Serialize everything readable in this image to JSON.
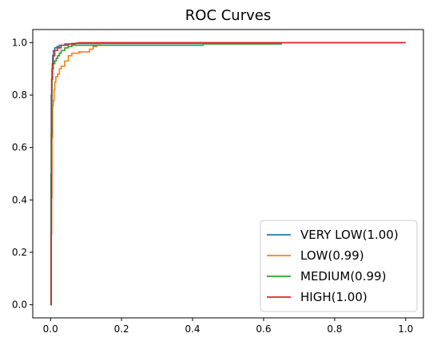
{
  "chart_data": {
    "type": "line",
    "title": "ROC Curves",
    "xlabel": "",
    "ylabel": "",
    "xlim": [
      -0.05,
      1.05
    ],
    "ylim": [
      -0.05,
      1.05
    ],
    "xticks": [
      0.0,
      0.2,
      0.4,
      0.6,
      0.8,
      1.0
    ],
    "yticks": [
      0.0,
      0.2,
      0.4,
      0.6,
      0.8,
      1.0
    ],
    "xtick_labels": [
      "0.0",
      "0.2",
      "0.4",
      "0.6",
      "0.8",
      "1.0"
    ],
    "ytick_labels": [
      "0.0",
      "0.2",
      "0.4",
      "0.6",
      "0.8",
      "1.0"
    ],
    "grid": false,
    "legend_position": "lower-right",
    "series": [
      {
        "name": "VERY LOW(1.00)",
        "color": "#1f77b4",
        "x": [
          0.0,
          0.001,
          0.002,
          0.004,
          0.006,
          0.008,
          0.012,
          0.018,
          0.025,
          0.04,
          0.06,
          0.65
        ],
        "y": [
          0.0,
          0.5,
          0.8,
          0.9,
          0.95,
          0.97,
          0.98,
          0.985,
          0.99,
          0.995,
          0.997,
          0.997
        ]
      },
      {
        "name": "LOW(0.99)",
        "color": "#ff7f0e",
        "x": [
          0.0,
          0.002,
          0.004,
          0.006,
          0.008,
          0.01,
          0.012,
          0.015,
          0.02,
          0.025,
          0.03,
          0.04,
          0.05,
          0.06,
          0.08,
          0.1,
          0.11,
          0.12,
          0.13,
          0.14,
          1.0
        ],
        "y": [
          0.0,
          0.41,
          0.64,
          0.76,
          0.78,
          0.82,
          0.85,
          0.87,
          0.88,
          0.9,
          0.91,
          0.93,
          0.95,
          0.96,
          0.965,
          0.965,
          0.975,
          0.985,
          0.99,
          1.0,
          1.0
        ]
      },
      {
        "name": "MEDIUM(0.99)",
        "color": "#2ca02c",
        "x": [
          0.0,
          0.002,
          0.004,
          0.006,
          0.008,
          0.012,
          0.016,
          0.02,
          0.025,
          0.03,
          0.04,
          0.05,
          0.06,
          0.08,
          0.1,
          0.42,
          0.43,
          0.65
        ],
        "y": [
          0.0,
          0.65,
          0.86,
          0.9,
          0.92,
          0.93,
          0.94,
          0.95,
          0.96,
          0.97,
          0.98,
          0.985,
          0.99,
          0.99,
          0.99,
          0.99,
          0.995,
          0.997
        ]
      },
      {
        "name": "HIGH(1.00)",
        "color": "#d62728",
        "x": [
          0.0,
          0.002,
          0.003,
          0.005,
          0.008,
          0.012,
          0.02,
          0.03,
          0.05,
          0.07,
          0.08,
          1.0
        ],
        "y": [
          0.0,
          0.27,
          0.86,
          0.92,
          0.95,
          0.97,
          0.98,
          0.99,
          0.995,
          0.998,
          1.0,
          1.0
        ]
      }
    ]
  }
}
